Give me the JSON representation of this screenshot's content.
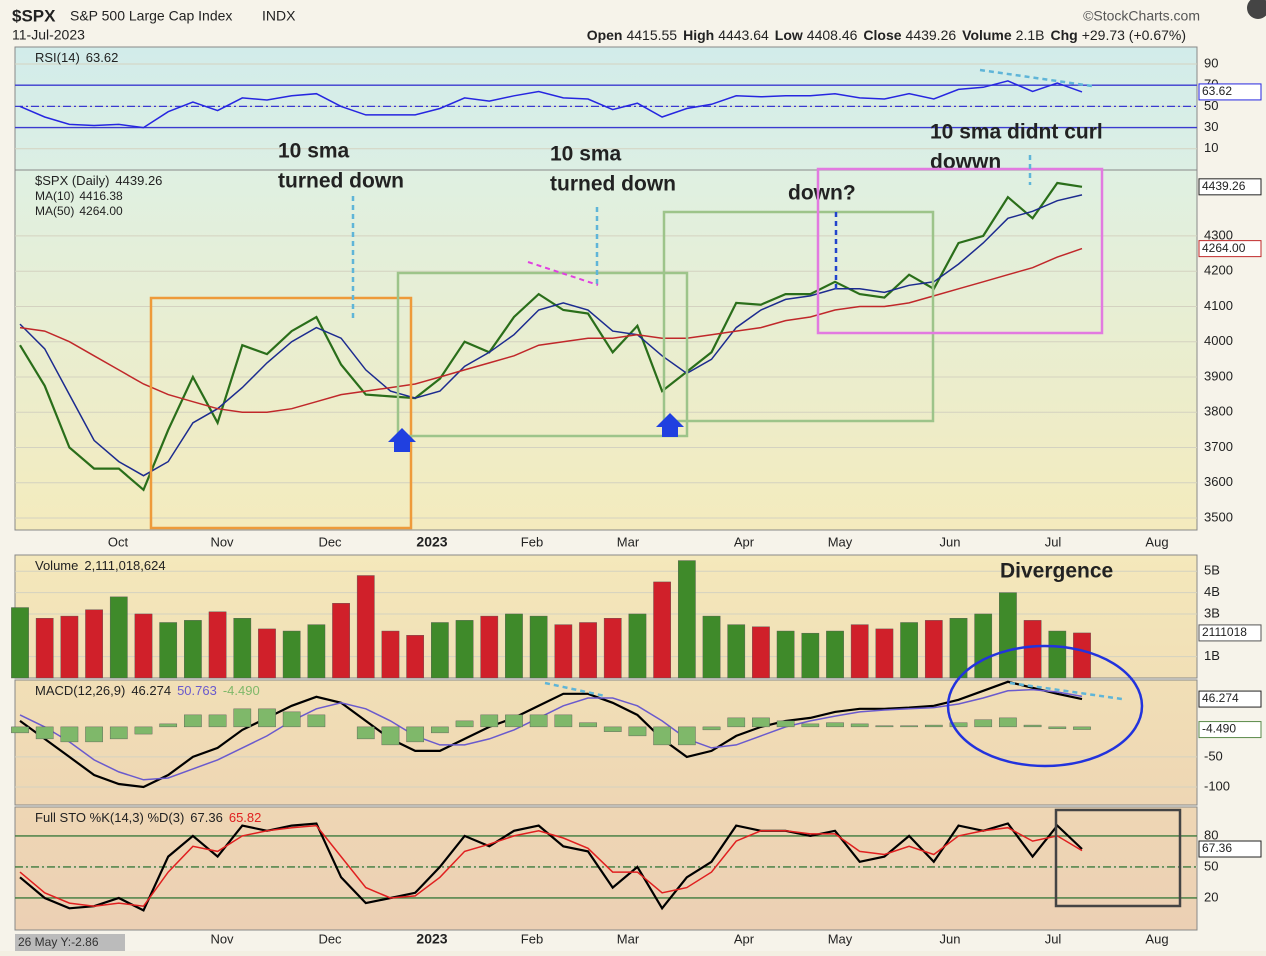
{
  "header": {
    "symbol": "$SPX",
    "name": "S&P 500 Large Cap Index",
    "exchange": "INDX",
    "date": "11-Jul-2023",
    "fields": [
      {
        "label": "Open",
        "value": "4415.55"
      },
      {
        "label": "High",
        "value": "4443.64"
      },
      {
        "label": "Low",
        "value": "4408.46"
      },
      {
        "label": "Close",
        "value": "4439.26"
      },
      {
        "label": "Volume",
        "value": "2.1B"
      },
      {
        "label": "Chg",
        "value": "+29.73 (+0.67%)"
      }
    ],
    "source": "©StockCharts.com"
  },
  "x_labels": [
    "Oct",
    "Nov",
    "Dec",
    "2023",
    "Feb",
    "Mar",
    "Apr",
    "May",
    "Jun",
    "Jul",
    "Aug"
  ],
  "status": "26 May Y:-2.86",
  "chart_data": [
    {
      "type": "line",
      "title": "RSI(14)",
      "ylim": [
        -10,
        106
      ],
      "yticks": [
        90,
        70,
        50,
        30,
        10
      ],
      "reference_lines": [
        70,
        50,
        30
      ],
      "reference_color": "#3a3ad0",
      "series": [
        {
          "name": "RSI(14)",
          "color": "#2626e0",
          "values": [
            50,
            40,
            33,
            32,
            33,
            30,
            45,
            54,
            46,
            58,
            56,
            60,
            62,
            50,
            42,
            42,
            42,
            48,
            58,
            55,
            60,
            64,
            58,
            57,
            47,
            53,
            40,
            48,
            52,
            60,
            59,
            60,
            60,
            62,
            58,
            57,
            62,
            57,
            66,
            68,
            74,
            64,
            72,
            63.62
          ]
        }
      ]
    },
    {
      "type": "line",
      "title": "$SPX (Daily)",
      "ylim": [
        3466,
        4487
      ],
      "yticks": [
        3500,
        3600,
        3700,
        3800,
        3900,
        4000,
        4100,
        4200,
        4300
      ],
      "series": [
        {
          "name": "$SPX (Daily)",
          "color": "#2a6e1a",
          "values": [
            3990,
            3875,
            3700,
            3640,
            3640,
            3580,
            3750,
            3900,
            3770,
            3990,
            3965,
            4030,
            4070,
            3935,
            3850,
            3845,
            3840,
            3895,
            4000,
            3970,
            4070,
            4135,
            4090,
            4080,
            3970,
            4045,
            3860,
            3915,
            3970,
            4110,
            4105,
            4135,
            4135,
            4170,
            4135,
            4125,
            4190,
            4150,
            4280,
            4300,
            4410,
            4350,
            4450,
            4439.26
          ]
        },
        {
          "name": "MA(10)",
          "color": "#1c2b8f",
          "values": [
            4050,
            3980,
            3850,
            3720,
            3660,
            3620,
            3660,
            3770,
            3810,
            3870,
            3940,
            4000,
            4040,
            4010,
            3920,
            3860,
            3840,
            3860,
            3930,
            3970,
            4020,
            4090,
            4110,
            4090,
            4030,
            4020,
            3960,
            3910,
            3950,
            4040,
            4090,
            4120,
            4130,
            4150,
            4150,
            4140,
            4160,
            4170,
            4220,
            4280,
            4350,
            4370,
            4400,
            4416.38
          ]
        },
        {
          "name": "MA(50)",
          "color": "#c0282a",
          "last_label": "4264.00",
          "values": [
            4040,
            4030,
            4000,
            3960,
            3920,
            3880,
            3850,
            3830,
            3810,
            3800,
            3800,
            3810,
            3830,
            3850,
            3860,
            3870,
            3880,
            3900,
            3920,
            3940,
            3960,
            3990,
            4000,
            4010,
            4010,
            4020,
            4010,
            4010,
            4020,
            4030,
            4040,
            4060,
            4070,
            4090,
            4100,
            4100,
            4110,
            4130,
            4150,
            4170,
            4190,
            4210,
            4240,
            4264
          ]
        }
      ],
      "annotations": [
        {
          "lines": [
            "10 sma",
            "turned down"
          ],
          "color": "#e040e0"
        },
        {
          "lines": [
            "10 sma",
            "turned down"
          ],
          "color": "#e040e0"
        },
        {
          "lines": [
            "down?"
          ],
          "color": "#2244cc"
        },
        {
          "lines": [
            "10 sma didnt curl",
            "dowwn"
          ],
          "color": "#e040e0"
        }
      ]
    },
    {
      "type": "bar",
      "title": "Volume",
      "title_value": "2,111,018,624",
      "ylim": [
        0,
        5.76
      ],
      "yticks": [
        {
          "value": 1,
          "label": "1B"
        },
        {
          "value": 3,
          "label": "3B"
        },
        {
          "value": 4,
          "label": "4B"
        },
        {
          "value": 5,
          "label": "5B"
        }
      ],
      "up_color": "#3f8a2a",
      "down_color": "#d0202a",
      "series": [
        {
          "last_label": "2111018",
          "values": [
            3.3,
            2.8,
            2.9,
            3.2,
            3.8,
            3.0,
            2.6,
            2.7,
            3.1,
            2.8,
            2.3,
            2.2,
            2.5,
            3.5,
            4.8,
            2.2,
            2.0,
            2.6,
            2.7,
            2.9,
            3.0,
            2.9,
            2.5,
            2.6,
            2.8,
            3.0,
            4.5,
            5.5,
            2.9,
            2.5,
            2.4,
            2.2,
            2.1,
            2.2,
            2.5,
            2.3,
            2.6,
            2.7,
            2.8,
            3.0,
            4.0,
            2.7,
            2.2,
            2.111018624
          ]
        }
      ],
      "annotations": [
        {
          "lines": [
            "Divergence"
          ],
          "color": "#2244cc"
        }
      ]
    },
    {
      "type": "line",
      "title": "MACD(12,26,9)",
      "ylim": [
        -130,
        78
      ],
      "yticks": [
        -50,
        -100
      ],
      "series": [
        {
          "color": "#000000",
          "last_label": "46.274",
          "values": [
            10,
            -20,
            -50,
            -80,
            -95,
            -100,
            -80,
            -50,
            -35,
            -5,
            15,
            35,
            50,
            40,
            10,
            -20,
            -40,
            -40,
            -20,
            0,
            15,
            35,
            55,
            55,
            40,
            20,
            -20,
            -50,
            -40,
            -15,
            0,
            10,
            15,
            25,
            30,
            30,
            32,
            35,
            45,
            60,
            75,
            65,
            55,
            46.274
          ]
        },
        {
          "color": "#6a5acd",
          "last_label": "50.763",
          "values": [
            20,
            0,
            -25,
            -55,
            -75,
            -88,
            -85,
            -70,
            -55,
            -35,
            -15,
            10,
            30,
            40,
            30,
            10,
            -15,
            -30,
            -30,
            -20,
            -5,
            15,
            35,
            48,
            48,
            35,
            10,
            -20,
            -35,
            -30,
            -15,
            0,
            10,
            18,
            25,
            28,
            30,
            32,
            38,
            48,
            60,
            62,
            58,
            50.763
          ]
        },
        {
          "color": "#7fb86a",
          "style": "histogram",
          "last_label": "-4.490",
          "values": [
            -10,
            -20,
            -25,
            -25,
            -20,
            -12,
            5,
            20,
            20,
            30,
            30,
            25,
            20,
            0,
            -20,
            -30,
            -25,
            -10,
            10,
            20,
            20,
            20,
            20,
            7,
            -8,
            -15,
            -30,
            -30,
            -5,
            15,
            15,
            10,
            5,
            7,
            5,
            2,
            2,
            3,
            7,
            12,
            15,
            3,
            -3,
            -4.49
          ]
        }
      ]
    },
    {
      "type": "line",
      "title": "Full STO %K(14,3) %D(3)",
      "ylim": [
        -11,
        108
      ],
      "yticks": [
        80,
        50,
        20
      ],
      "reference_lines": [
        80,
        50,
        20
      ],
      "reference_color": "#3c7a3c",
      "series": [
        {
          "color": "#000000",
          "values": [
            40,
            20,
            10,
            12,
            20,
            8,
            60,
            80,
            60,
            90,
            85,
            90,
            92,
            40,
            15,
            20,
            25,
            50,
            80,
            70,
            85,
            90,
            70,
            65,
            30,
            50,
            10,
            40,
            55,
            90,
            85,
            85,
            80,
            85,
            55,
            60,
            80,
            55,
            90,
            85,
            92,
            60,
            90,
            67.36
          ]
        },
        {
          "color": "#e02020",
          "values": [
            45,
            25,
            15,
            12,
            15,
            12,
            45,
            70,
            65,
            80,
            85,
            88,
            90,
            60,
            30,
            20,
            22,
            40,
            65,
            72,
            80,
            85,
            78,
            68,
            45,
            45,
            25,
            30,
            45,
            75,
            85,
            85,
            82,
            82,
            65,
            62,
            70,
            62,
            80,
            85,
            88,
            75,
            80,
            65.82
          ]
        }
      ]
    }
  ]
}
